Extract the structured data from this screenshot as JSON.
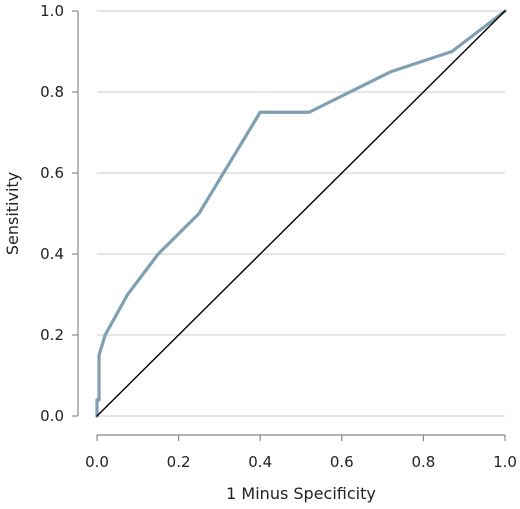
{
  "chart_data": {
    "type": "line",
    "xlabel": "1 Minus Specificity",
    "ylabel": "Sensitivity",
    "xlim": [
      0.0,
      1.0
    ],
    "ylim": [
      0.0,
      1.0
    ],
    "x_ticks": [
      "0.0",
      "0.2",
      "0.4",
      "0.6",
      "0.8",
      "1.0"
    ],
    "y_ticks": [
      "0.0",
      "0.2",
      "0.4",
      "0.6",
      "0.8",
      "1.0"
    ],
    "grid": "horizontal",
    "series": [
      {
        "x": [
          0.0,
          0.0,
          0.005,
          0.005,
          0.02,
          0.075,
          0.15,
          0.25,
          0.4,
          0.52,
          0.72,
          0.87,
          1.0
        ],
        "y": [
          0.0,
          0.04,
          0.04,
          0.15,
          0.2,
          0.3,
          0.4,
          0.5,
          0.75,
          0.75,
          0.85,
          0.9,
          1.0
        ],
        "color": "#7f9fb3"
      },
      {
        "x": [
          0.0,
          1.0
        ],
        "y": [
          0.0,
          1.0
        ],
        "color": "#000000"
      }
    ],
    "colors": {
      "roc_curve": "#7f9fb3",
      "reference_line": "#000000",
      "gridline": "#cccccc",
      "axis": "#888888"
    }
  }
}
